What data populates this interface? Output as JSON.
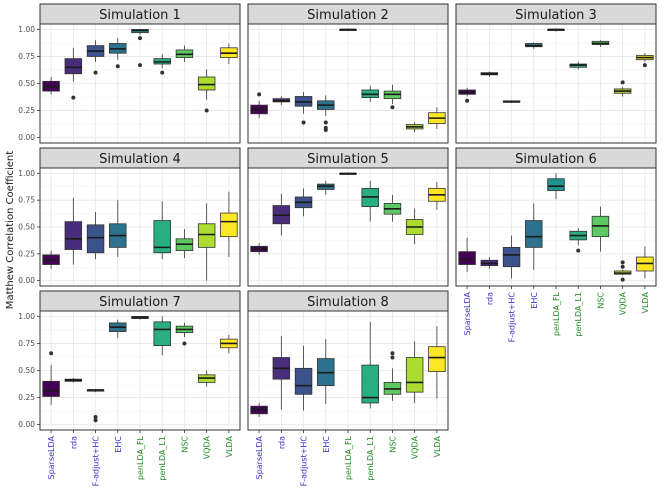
{
  "chart_data": {
    "type": "box",
    "ylabel": "Matthew Correlation Coefficient",
    "ylim": [
      -0.05,
      1.05
    ],
    "yticks": [
      "0.00",
      "0.25",
      "0.50",
      "0.75",
      "1.00"
    ],
    "categories": [
      "SparseLDA",
      "rda",
      "F-adjust+HC",
      "EHC",
      "penLDA_FL",
      "penLDA_L1",
      "NSC",
      "VQDA",
      "VLDA"
    ],
    "category_colors": [
      "#440154",
      "#472d7b",
      "#3b528b",
      "#2c728e",
      "#21918c",
      "#28ae80",
      "#5ec962",
      "#addc30",
      "#fde725"
    ],
    "label_colors": [
      "#3333cc",
      "#3333cc",
      "#3333cc",
      "#3333cc",
      "#228b22",
      "#228b22",
      "#228b22",
      "#228b22",
      "#228b22"
    ],
    "panels": [
      {
        "title": "Simulation  1",
        "boxes": [
          {
            "q1": 0.43,
            "med": 0.47,
            "q3": 0.52,
            "lo": 0.4,
            "hi": 0.56,
            "out": []
          },
          {
            "q1": 0.59,
            "med": 0.65,
            "q3": 0.73,
            "lo": 0.52,
            "hi": 0.83,
            "out": [
              0.37
            ]
          },
          {
            "q1": 0.75,
            "med": 0.8,
            "q3": 0.85,
            "lo": 0.7,
            "hi": 0.9,
            "out": [
              0.6
            ]
          },
          {
            "q1": 0.78,
            "med": 0.82,
            "q3": 0.87,
            "lo": 0.72,
            "hi": 0.92,
            "out": [
              0.66
            ]
          },
          {
            "q1": 0.97,
            "med": 0.99,
            "q3": 1.0,
            "lo": 0.95,
            "hi": 1.0,
            "out": [
              0.92,
              0.67
            ]
          },
          {
            "q1": 0.68,
            "med": 0.7,
            "q3": 0.73,
            "lo": 0.64,
            "hi": 0.77,
            "out": [
              0.6
            ]
          },
          {
            "q1": 0.74,
            "med": 0.77,
            "q3": 0.81,
            "lo": 0.7,
            "hi": 0.85,
            "out": []
          },
          {
            "q1": 0.44,
            "med": 0.49,
            "q3": 0.56,
            "lo": 0.35,
            "hi": 0.63,
            "out": [
              0.25
            ]
          },
          {
            "q1": 0.74,
            "med": 0.78,
            "q3": 0.83,
            "lo": 0.68,
            "hi": 0.87,
            "out": []
          }
        ]
      },
      {
        "title": "Simulation  2",
        "boxes": [
          {
            "q1": 0.22,
            "med": 0.26,
            "q3": 0.3,
            "lo": 0.18,
            "hi": 0.34,
            "out": [
              0.4
            ]
          },
          {
            "q1": 0.33,
            "med": 0.34,
            "q3": 0.36,
            "lo": 0.3,
            "hi": 0.38,
            "out": []
          },
          {
            "q1": 0.29,
            "med": 0.33,
            "q3": 0.38,
            "lo": 0.22,
            "hi": 0.42,
            "out": [
              0.14
            ]
          },
          {
            "q1": 0.26,
            "med": 0.3,
            "q3": 0.34,
            "lo": 0.2,
            "hi": 0.39,
            "out": [
              0.14,
              0.09,
              0.07
            ]
          },
          {
            "q1": 0.99,
            "med": 1.0,
            "q3": 1.0,
            "lo": 0.99,
            "hi": 1.0,
            "out": []
          },
          {
            "q1": 0.37,
            "med": 0.4,
            "q3": 0.44,
            "lo": 0.33,
            "hi": 0.48,
            "out": []
          },
          {
            "q1": 0.36,
            "med": 0.4,
            "q3": 0.43,
            "lo": 0.31,
            "hi": 0.49,
            "out": [
              0.28
            ]
          },
          {
            "q1": 0.08,
            "med": 0.1,
            "q3": 0.12,
            "lo": 0.05,
            "hi": 0.14,
            "out": []
          },
          {
            "q1": 0.13,
            "med": 0.18,
            "q3": 0.23,
            "lo": 0.08,
            "hi": 0.28,
            "out": []
          }
        ]
      },
      {
        "title": "Simulation  3",
        "boxes": [
          {
            "q1": 0.4,
            "med": 0.42,
            "q3": 0.44,
            "lo": 0.38,
            "hi": 0.46,
            "out": [
              0.34
            ]
          },
          {
            "q1": 0.58,
            "med": 0.59,
            "q3": 0.6,
            "lo": 0.56,
            "hi": 0.61,
            "out": []
          },
          {
            "q1": 0.33,
            "med": 0.33,
            "q3": 0.34,
            "lo": 0.32,
            "hi": 0.34,
            "out": []
          },
          {
            "q1": 0.84,
            "med": 0.85,
            "q3": 0.87,
            "lo": 0.82,
            "hi": 0.88,
            "out": []
          },
          {
            "q1": 0.99,
            "med": 1.0,
            "q3": 1.0,
            "lo": 0.98,
            "hi": 1.0,
            "out": []
          },
          {
            "q1": 0.65,
            "med": 0.67,
            "q3": 0.68,
            "lo": 0.63,
            "hi": 0.7,
            "out": []
          },
          {
            "q1": 0.86,
            "med": 0.87,
            "q3": 0.89,
            "lo": 0.84,
            "hi": 0.9,
            "out": []
          },
          {
            "q1": 0.41,
            "med": 0.43,
            "q3": 0.45,
            "lo": 0.38,
            "hi": 0.47,
            "out": [
              0.51
            ]
          },
          {
            "q1": 0.72,
            "med": 0.74,
            "q3": 0.76,
            "lo": 0.7,
            "hi": 0.78,
            "out": [
              0.67
            ]
          }
        ]
      },
      {
        "title": "Simulation  4",
        "boxes": [
          {
            "q1": 0.15,
            "med": 0.19,
            "q3": 0.24,
            "lo": 0.11,
            "hi": 0.28,
            "out": []
          },
          {
            "q1": 0.29,
            "med": 0.39,
            "q3": 0.55,
            "lo": 0.15,
            "hi": 0.77,
            "out": []
          },
          {
            "q1": 0.26,
            "med": 0.4,
            "q3": 0.52,
            "lo": 0.2,
            "hi": 0.64,
            "out": []
          },
          {
            "q1": 0.31,
            "med": 0.42,
            "q3": 0.53,
            "lo": 0.22,
            "hi": 0.75,
            "out": []
          },
          {
            "q1": null,
            "med": null,
            "q3": null,
            "lo": null,
            "hi": null,
            "out": []
          },
          {
            "q1": 0.26,
            "med": 0.31,
            "q3": 0.56,
            "lo": 0.2,
            "hi": 0.74,
            "out": []
          },
          {
            "q1": 0.28,
            "med": 0.34,
            "q3": 0.39,
            "lo": 0.21,
            "hi": 0.48,
            "out": []
          },
          {
            "q1": 0.31,
            "med": 0.43,
            "q3": 0.53,
            "lo": 0.0,
            "hi": 0.72,
            "out": []
          },
          {
            "q1": 0.41,
            "med": 0.55,
            "q3": 0.63,
            "lo": 0.22,
            "hi": 0.83,
            "out": []
          }
        ]
      },
      {
        "title": "Simulation  5",
        "boxes": [
          {
            "q1": 0.27,
            "med": 0.3,
            "q3": 0.32,
            "lo": 0.24,
            "hi": 0.35,
            "out": []
          },
          {
            "q1": 0.53,
            "med": 0.61,
            "q3": 0.7,
            "lo": 0.42,
            "hi": 0.81,
            "out": []
          },
          {
            "q1": 0.68,
            "med": 0.73,
            "q3": 0.78,
            "lo": 0.6,
            "hi": 0.86,
            "out": []
          },
          {
            "q1": 0.85,
            "med": 0.88,
            "q3": 0.9,
            "lo": 0.8,
            "hi": 0.93,
            "out": []
          },
          {
            "q1": 0.99,
            "med": 1.0,
            "q3": 1.0,
            "lo": 0.99,
            "hi": 1.0,
            "out": []
          },
          {
            "q1": 0.69,
            "med": 0.78,
            "q3": 0.86,
            "lo": 0.55,
            "hi": 0.93,
            "out": []
          },
          {
            "q1": 0.62,
            "med": 0.67,
            "q3": 0.72,
            "lo": 0.55,
            "hi": 0.8,
            "out": []
          },
          {
            "q1": 0.43,
            "med": 0.5,
            "q3": 0.57,
            "lo": 0.34,
            "hi": 0.67,
            "out": []
          },
          {
            "q1": 0.74,
            "med": 0.8,
            "q3": 0.86,
            "lo": 0.66,
            "hi": 0.92,
            "out": []
          }
        ]
      },
      {
        "title": "Simulation  6",
        "boxes": [
          {
            "q1": 0.15,
            "med": 0.2,
            "q3": 0.27,
            "lo": 0.08,
            "hi": 0.4,
            "out": []
          },
          {
            "q1": 0.14,
            "med": 0.16,
            "q3": 0.19,
            "lo": 0.11,
            "hi": 0.22,
            "out": []
          },
          {
            "q1": 0.13,
            "med": 0.24,
            "q3": 0.31,
            "lo": 0.02,
            "hi": 0.42,
            "out": []
          },
          {
            "q1": 0.31,
            "med": 0.41,
            "q3": 0.56,
            "lo": 0.1,
            "hi": 0.72,
            "out": []
          },
          {
            "q1": 0.84,
            "med": 0.88,
            "q3": 0.95,
            "lo": 0.76,
            "hi": 1.0,
            "out": []
          },
          {
            "q1": 0.38,
            "med": 0.42,
            "q3": 0.46,
            "lo": 0.33,
            "hi": 0.49,
            "out": [
              0.28
            ]
          },
          {
            "q1": 0.41,
            "med": 0.51,
            "q3": 0.6,
            "lo": 0.27,
            "hi": 0.69,
            "out": []
          },
          {
            "q1": 0.06,
            "med": 0.07,
            "q3": 0.09,
            "lo": 0.05,
            "hi": 0.1,
            "out": [
              0.17,
              0.13,
              0.01
            ]
          },
          {
            "q1": 0.09,
            "med": 0.16,
            "q3": 0.22,
            "lo": 0.02,
            "hi": 0.32,
            "out": []
          }
        ]
      },
      {
        "title": "Simulation  7",
        "boxes": [
          {
            "q1": 0.26,
            "med": 0.31,
            "q3": 0.4,
            "lo": 0.18,
            "hi": 0.55,
            "out": [
              0.66
            ]
          },
          {
            "q1": 0.4,
            "med": 0.41,
            "q3": 0.42,
            "lo": 0.39,
            "hi": 0.43,
            "out": []
          },
          {
            "q1": 0.31,
            "med": 0.32,
            "q3": 0.32,
            "lo": 0.3,
            "hi": 0.33,
            "out": [
              0.07,
              0.04
            ]
          },
          {
            "q1": 0.86,
            "med": 0.9,
            "q3": 0.94,
            "lo": 0.8,
            "hi": 0.97,
            "out": []
          },
          {
            "q1": 0.98,
            "med": 0.99,
            "q3": 1.0,
            "lo": 0.97,
            "hi": 1.0,
            "out": []
          },
          {
            "q1": 0.73,
            "med": 0.88,
            "q3": 0.95,
            "lo": 0.64,
            "hi": 1.0,
            "out": []
          },
          {
            "q1": 0.85,
            "med": 0.88,
            "q3": 0.91,
            "lo": 0.81,
            "hi": 0.94,
            "out": [
              0.75
            ]
          },
          {
            "q1": 0.39,
            "med": 0.43,
            "q3": 0.46,
            "lo": 0.35,
            "hi": 0.5,
            "out": []
          },
          {
            "q1": 0.71,
            "med": 0.75,
            "q3": 0.79,
            "lo": 0.66,
            "hi": 0.83,
            "out": []
          }
        ]
      },
      {
        "title": "Simulation  8",
        "boxes": [
          {
            "q1": 0.1,
            "med": 0.14,
            "q3": 0.17,
            "lo": 0.07,
            "hi": 0.2,
            "out": []
          },
          {
            "q1": 0.42,
            "med": 0.52,
            "q3": 0.62,
            "lo": 0.14,
            "hi": 0.82,
            "out": []
          },
          {
            "q1": 0.28,
            "med": 0.36,
            "q3": 0.52,
            "lo": 0.13,
            "hi": 0.73,
            "out": []
          },
          {
            "q1": 0.36,
            "med": 0.48,
            "q3": 0.61,
            "lo": 0.19,
            "hi": 0.79,
            "out": []
          },
          {
            "q1": null,
            "med": null,
            "q3": null,
            "lo": null,
            "hi": null,
            "out": []
          },
          {
            "q1": 0.2,
            "med": 0.25,
            "q3": 0.55,
            "lo": 0.15,
            "hi": 0.95,
            "out": []
          },
          {
            "q1": 0.28,
            "med": 0.33,
            "q3": 0.39,
            "lo": 0.22,
            "hi": 0.52,
            "out": [
              0.66,
              0.62
            ]
          },
          {
            "q1": 0.3,
            "med": 0.39,
            "q3": 0.62,
            "lo": 0.2,
            "hi": 0.77,
            "out": []
          },
          {
            "q1": 0.49,
            "med": 0.62,
            "q3": 0.72,
            "lo": 0.24,
            "hi": 0.91,
            "out": []
          }
        ]
      }
    ]
  }
}
